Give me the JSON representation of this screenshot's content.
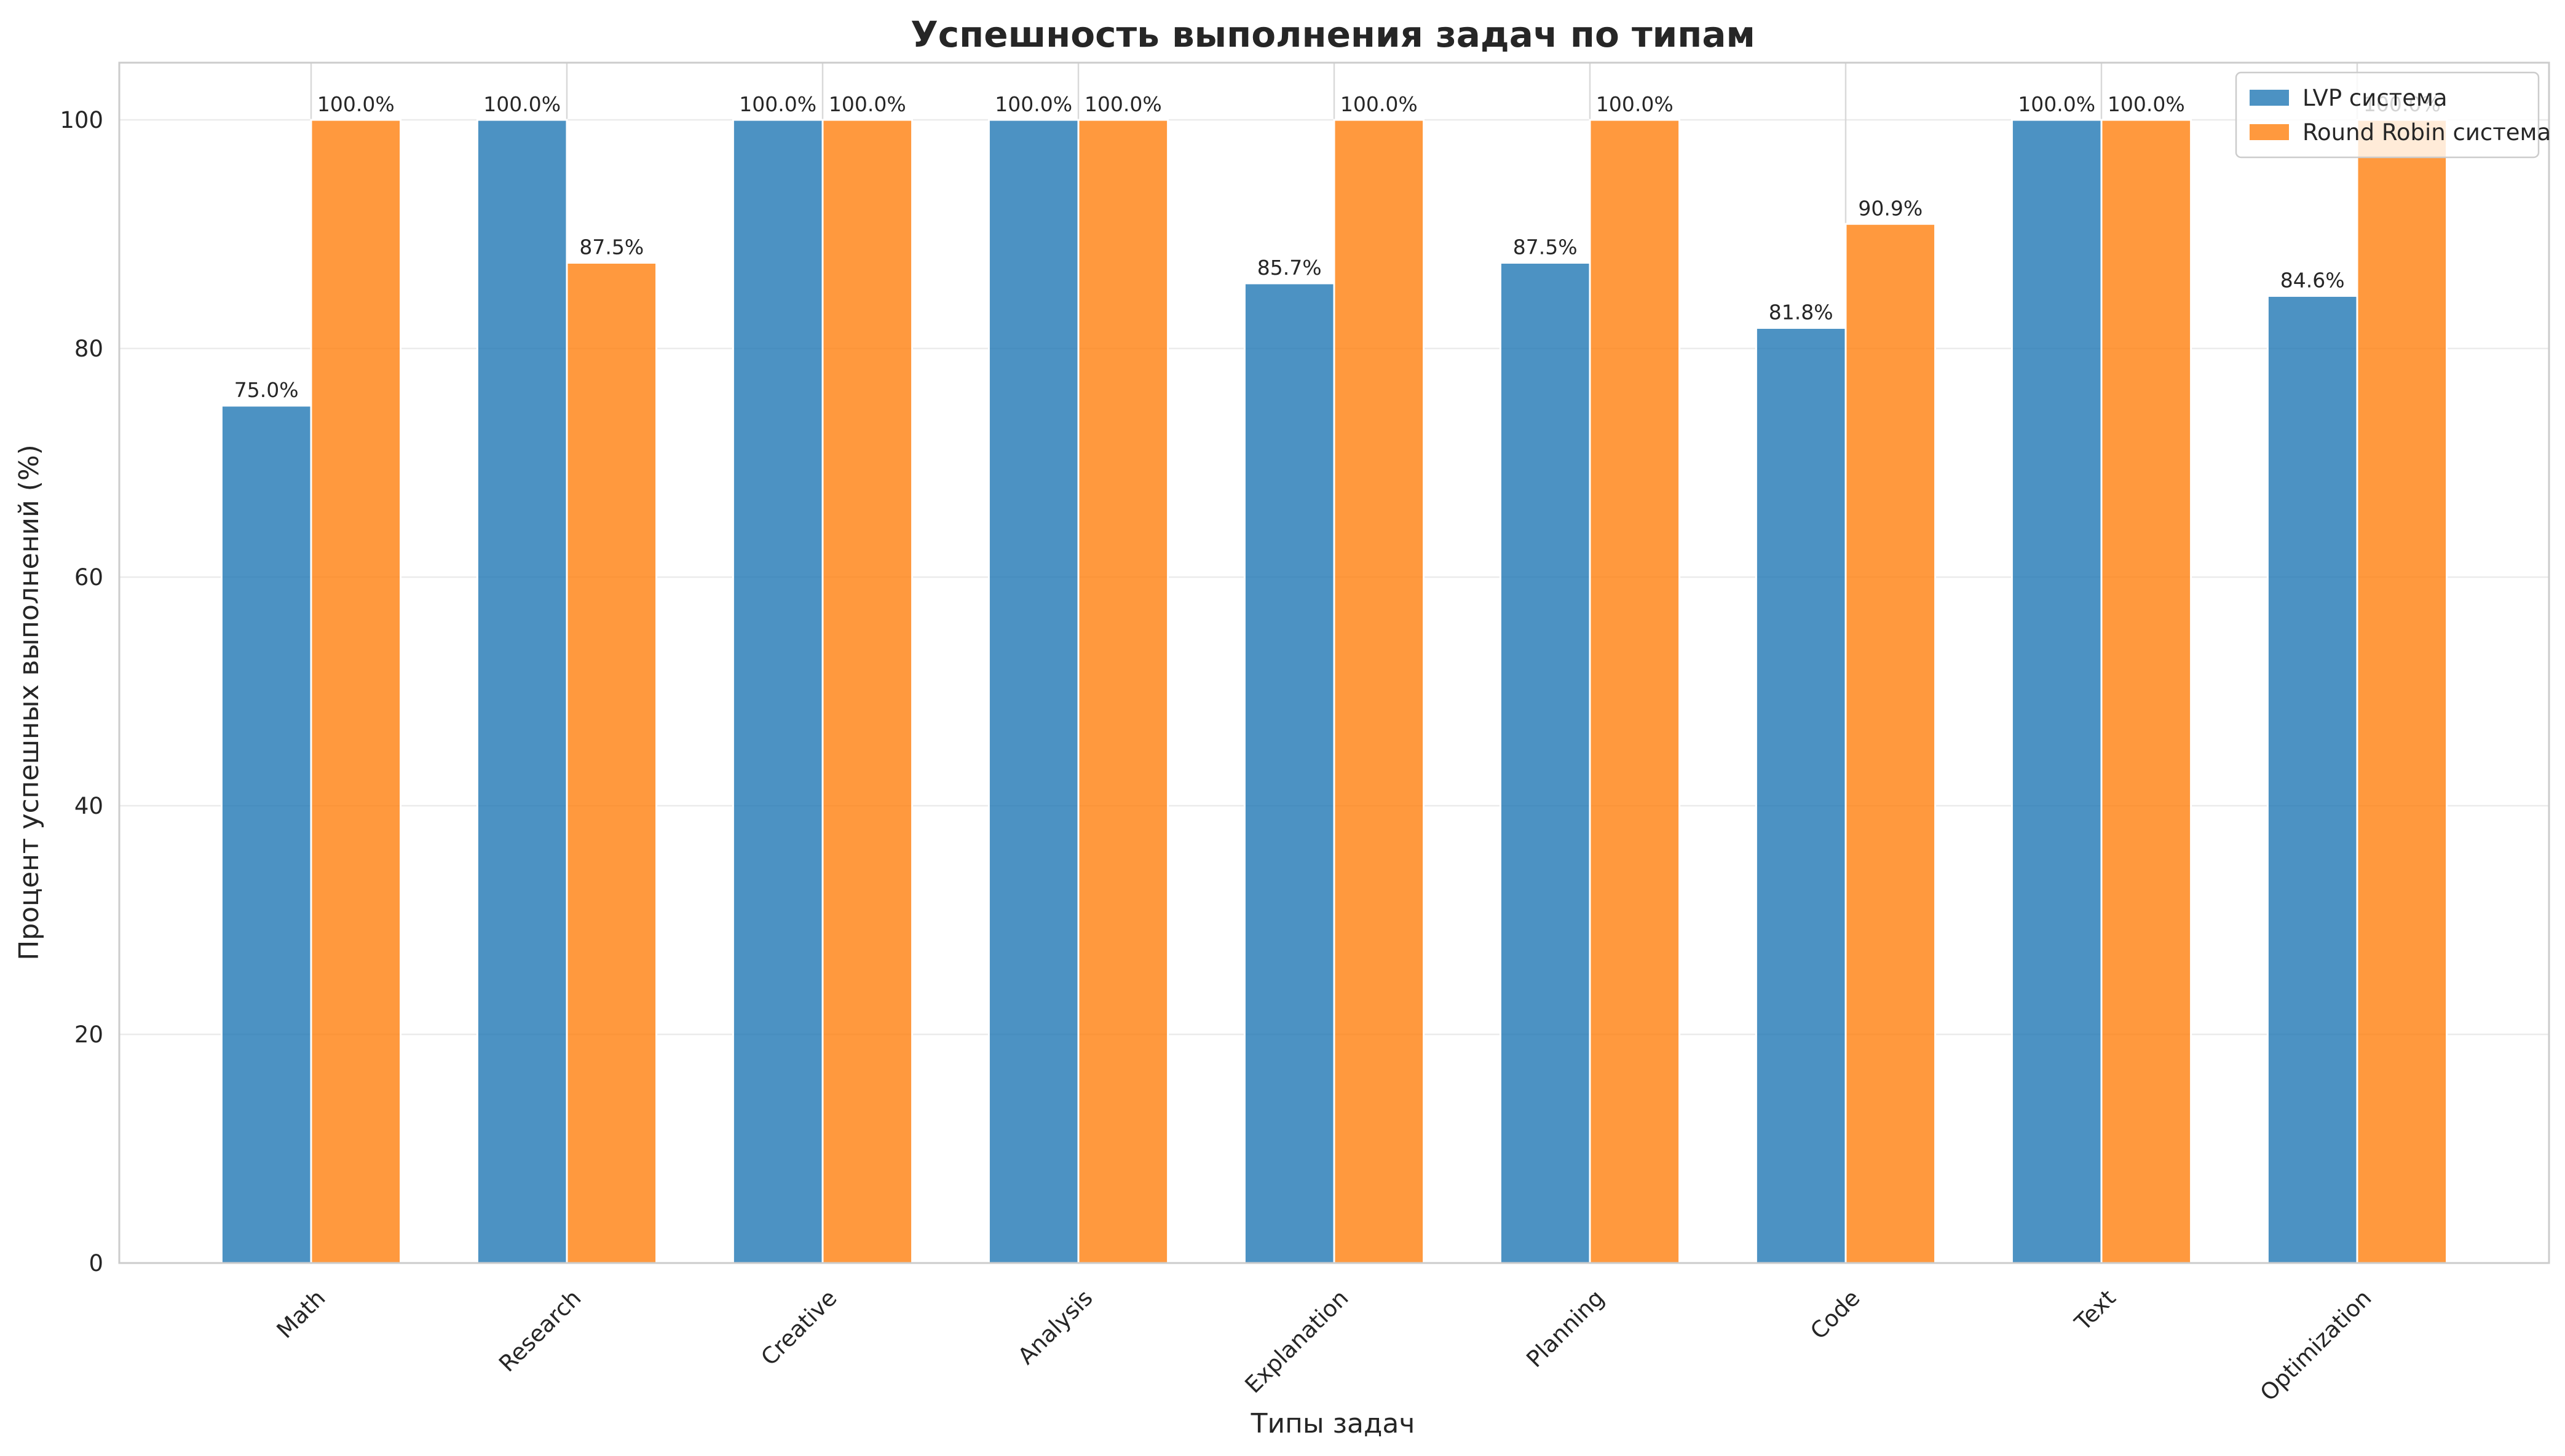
{
  "chart_data": {
    "type": "bar",
    "title": "Успешность выполнения задач по типам",
    "xlabel": "Типы задач",
    "ylabel": "Процент успешных выполнений (%)",
    "ylim": [
      0,
      105
    ],
    "yticks": [
      0,
      20,
      40,
      60,
      80,
      100
    ],
    "grid": true,
    "legend_position": "top-right",
    "categories": [
      "Math",
      "Research",
      "Creative",
      "Analysis",
      "Explanation",
      "Planning",
      "Code",
      "Text",
      "Optimization"
    ],
    "series": [
      {
        "name": "LVP система",
        "color": "#1f77b4",
        "values": [
          75.0,
          100.0,
          100.0,
          100.0,
          85.7,
          87.5,
          81.8,
          100.0,
          84.6
        ],
        "labels": [
          "75.0%",
          "100.0%",
          "100.0%",
          "100.0%",
          "85.7%",
          "87.5%",
          "81.8%",
          "100.0%",
          "84.6%"
        ]
      },
      {
        "name": "Round Robin система",
        "color": "#ff7f0e",
        "values": [
          100.0,
          87.5,
          100.0,
          100.0,
          100.0,
          100.0,
          90.9,
          100.0,
          100.0
        ],
        "labels": [
          "100.0%",
          "87.5%",
          "100.0%",
          "100.0%",
          "100.0%",
          "100.0%",
          "90.9%",
          "100.0%",
          "100.0%"
        ]
      }
    ]
  }
}
